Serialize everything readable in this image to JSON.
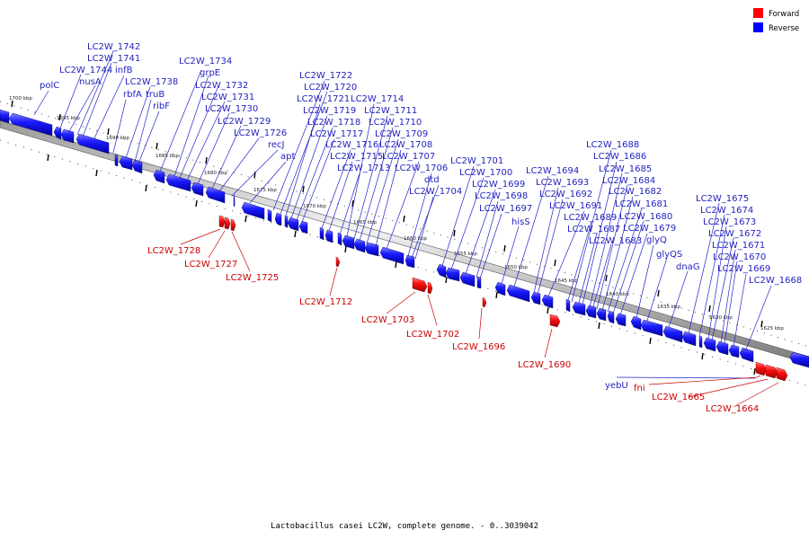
{
  "legend": {
    "forward": {
      "label": "Forward",
      "color": "#ff0000"
    },
    "reverse": {
      "label": "Reverse",
      "color": "#0000ff"
    }
  },
  "caption": "Lactobacillus casei LC2W, complete genome. - 0..3039042",
  "scale_labels": [
    "1700 kbp",
    "1695 kbp",
    "1690 kbp",
    "1685 kbp",
    "1680 kbp",
    "1675 kbp",
    "1670 kbp",
    "1665 kbp",
    "1660 kbp",
    "1655 kbp",
    "1650 kbp",
    "1645 kbp",
    "1640 kbp",
    "1635 kbp",
    "1630 kbp",
    "1625 kbp"
  ],
  "reverse_genes": [
    "polC",
    "LC2W_1744",
    "nusA",
    "LC2W_1742",
    "LC2W_1741",
    "infB",
    "rbfA",
    "LC2W_1738",
    "truB",
    "ribF",
    "LC2W_1734",
    "grpE",
    "LC2W_1732",
    "LC2W_1731",
    "LC2W_1730",
    "LC2W_1729",
    "LC2W_1726",
    "recJ",
    "apt",
    "LC2W_1722",
    "LC2W_1720",
    "LC2W_1721",
    "LC2W_1719",
    "LC2W_1718",
    "LC2W_1717",
    "LC2W_1716",
    "LC2W_1715",
    "LC2W_1713",
    "LC2W_1714",
    "LC2W_1711",
    "LC2W_1710",
    "LC2W_1709",
    "LC2W_1708",
    "LC2W_1707",
    "LC2W_1706",
    "dtd",
    "LC2W_1704",
    "LC2W_1701",
    "LC2W_1700",
    "LC2W_1699",
    "LC2W_1698",
    "LC2W_1697",
    "hisS",
    "LC2W_1694",
    "LC2W_1693",
    "LC2W_1692",
    "LC2W_1691",
    "LC2W_1689",
    "LC2W_1687",
    "LC2W_1683",
    "LC2W_1688",
    "LC2W_1686",
    "LC2W_1685",
    "LC2W_1684",
    "LC2W_1682",
    "LC2W_1681",
    "LC2W_1680",
    "LC2W_1679",
    "glyQ",
    "glyQS",
    "dnaG",
    "LC2W_1675",
    "LC2W_1674",
    "LC2W_1673",
    "LC2W_1672",
    "LC2W_1671",
    "LC2W_1670",
    "LC2W_1669",
    "LC2W_1668",
    "yebU"
  ],
  "forward_genes": [
    "LC2W_1728",
    "LC2W_1727",
    "LC2W_1725",
    "LC2W_1712",
    "LC2W_1703",
    "LC2W_1702",
    "LC2W_1696",
    "LC2W_1690",
    "fni",
    "LC2W_1665",
    "LC2W_1664"
  ]
}
